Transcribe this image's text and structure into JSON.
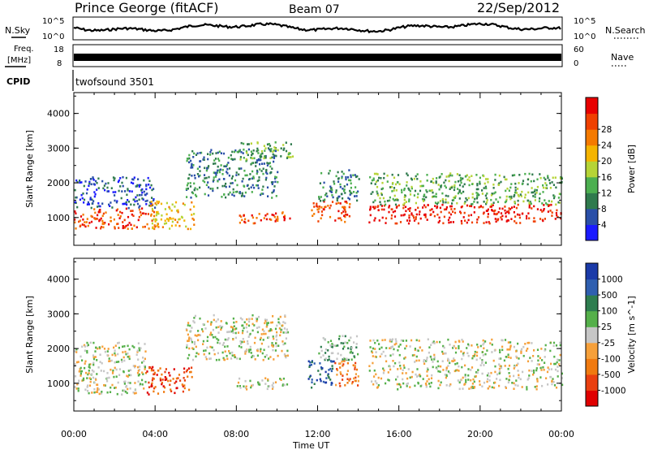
{
  "header": {
    "station": "Prince George (fitACF)",
    "beam": "Beam 07",
    "date": "22/Sep/2012"
  },
  "status_panels": {
    "nsky_label": "N.Sky",
    "nsky_ticks": [
      "10^5",
      "10^0"
    ],
    "nsearch_label": "N.Search",
    "nsearch_ticks": [
      "10^5",
      "10^0"
    ],
    "freq_label_1": "Freq.",
    "freq_label_2": "[MHz]",
    "freq_ticks": [
      "18",
      "8"
    ],
    "nave_label": "Nave",
    "nave_ticks": [
      "60",
      "0"
    ],
    "cpid_label": "CPID",
    "cpid_value": "twofsound 3501"
  },
  "colors": {
    "power_scale": [
      "#1a1aff",
      "#2a4fa8",
      "#2f7a4d",
      "#4caf50",
      "#b6d436",
      "#f5b400",
      "#f57a00",
      "#f04000",
      "#e80000"
    ],
    "velocity_scale": [
      "#1a3aa8",
      "#2f5fb0",
      "#2e7d4f",
      "#55b04a",
      "#c6c6c6",
      "#f6a03a",
      "#f07a10",
      "#ea4010",
      "#e00000"
    ]
  },
  "chart_data": [
    {
      "type": "heatmap",
      "name": "Power",
      "ylabel": "Slant Range [km]",
      "xlabel": "Time UT",
      "x_ticks": [
        "00:00",
        "04:00",
        "08:00",
        "12:00",
        "16:00",
        "20:00",
        "00:00"
      ],
      "y_ticks": [
        1000,
        2000,
        3000,
        4000
      ],
      "ylim": [
        200,
        4600
      ],
      "colorbar_label": "Power [dB]",
      "colorbar_ticks": [
        "4",
        "8",
        "12",
        "16",
        "20",
        "24",
        "28"
      ],
      "blobs": [
        {
          "t0": 0.0,
          "t1": 4.0,
          "r0": 700,
          "r1": 1300,
          "level": 7
        },
        {
          "t0": 0.0,
          "t1": 4.0,
          "r0": 1300,
          "r1": 2200,
          "level": 1
        },
        {
          "t0": 3.7,
          "t1": 5.9,
          "r0": 700,
          "r1": 1500,
          "level": 5
        },
        {
          "t0": 5.5,
          "t1": 10.0,
          "r0": 1600,
          "r1": 3000,
          "level": 2
        },
        {
          "t0": 8.0,
          "t1": 10.8,
          "r0": 2700,
          "r1": 3200,
          "level": 3
        },
        {
          "t0": 8.0,
          "t1": 10.6,
          "r0": 850,
          "r1": 1200,
          "level": 7
        },
        {
          "t0": 11.6,
          "t1": 13.6,
          "r0": 900,
          "r1": 1500,
          "level": 7
        },
        {
          "t0": 12.0,
          "t1": 14.0,
          "r0": 1500,
          "r1": 2400,
          "level": 2
        },
        {
          "t0": 14.5,
          "t1": 24.0,
          "r0": 850,
          "r1": 1400,
          "level": 8
        },
        {
          "t0": 14.5,
          "t1": 24.0,
          "r0": 1400,
          "r1": 2300,
          "level": 3
        }
      ]
    },
    {
      "type": "heatmap",
      "name": "Velocity",
      "ylabel": "Slant Range [km]",
      "xlabel": "Time UT",
      "x_ticks": [
        "00:00",
        "04:00",
        "08:00",
        "12:00",
        "16:00",
        "20:00",
        "00:00"
      ],
      "y_ticks": [
        1000,
        2000,
        3000,
        4000
      ],
      "ylim": [
        200,
        4600
      ],
      "colorbar_label": "Velocity [m s^-1]",
      "colorbar_ticks": [
        "1000",
        "500",
        "100",
        "25",
        "-25",
        "-100",
        "-500",
        "-1000"
      ],
      "blobs": [
        {
          "t0": 0.0,
          "t1": 3.5,
          "r0": 700,
          "r1": 2200,
          "level": 4
        },
        {
          "t0": 3.5,
          "t1": 5.8,
          "r0": 700,
          "r1": 1500,
          "level": 7
        },
        {
          "t0": 5.5,
          "t1": 10.5,
          "r0": 1700,
          "r1": 3000,
          "level": 4
        },
        {
          "t0": 8.0,
          "t1": 10.5,
          "r0": 850,
          "r1": 1200,
          "level": 4
        },
        {
          "t0": 11.5,
          "t1": 12.8,
          "r0": 900,
          "r1": 1700,
          "level": 1
        },
        {
          "t0": 12.8,
          "t1": 14.0,
          "r0": 900,
          "r1": 1700,
          "level": 6
        },
        {
          "t0": 12.0,
          "t1": 14.0,
          "r0": 1700,
          "r1": 2400,
          "level": 3
        },
        {
          "t0": 14.5,
          "t1": 24.0,
          "r0": 850,
          "r1": 2300,
          "level": 4
        }
      ]
    }
  ]
}
